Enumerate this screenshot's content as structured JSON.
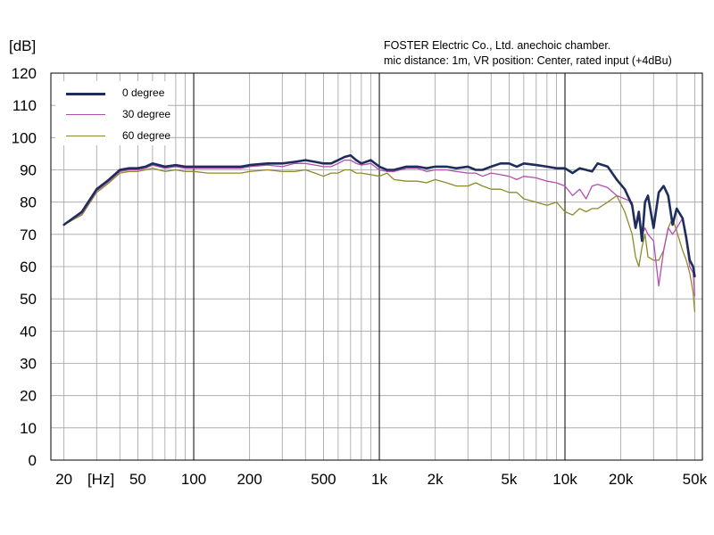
{
  "header": {
    "line1": "FOSTER Electric Co., Ltd.    anechoic chamber.",
    "line2": "mic distance: 1m, VR position: Center, rated input (+4dBu)"
  },
  "chart_data": {
    "type": "line",
    "ylabel": "[dB]",
    "xlabel": "[Hz]",
    "x_scale": "log",
    "xlim": [
      17,
      55000
    ],
    "ylim": [
      0,
      120
    ],
    "grid": true,
    "legend_position": "top-left",
    "y_ticks": [
      0,
      10,
      20,
      30,
      40,
      50,
      60,
      70,
      80,
      90,
      100,
      110,
      120
    ],
    "x_tick_labels": [
      {
        "value": 20,
        "label": "20"
      },
      {
        "value": 50,
        "label": "50"
      },
      {
        "value": 100,
        "label": "100"
      },
      {
        "value": 200,
        "label": "200"
      },
      {
        "value": 500,
        "label": "500"
      },
      {
        "value": 1000,
        "label": "1k"
      },
      {
        "value": 2000,
        "label": "2k"
      },
      {
        "value": 5000,
        "label": "5k"
      },
      {
        "value": 10000,
        "label": "10k"
      },
      {
        "value": 20000,
        "label": "20k"
      },
      {
        "value": 50000,
        "label": "50k"
      }
    ],
    "series": [
      {
        "name": "0 degree",
        "color": "#1f2d5c",
        "x": [
          20,
          25,
          30,
          35,
          40,
          45,
          50,
          55,
          60,
          70,
          80,
          90,
          100,
          120,
          150,
          180,
          200,
          250,
          300,
          350,
          400,
          450,
          500,
          550,
          600,
          650,
          700,
          750,
          800,
          900,
          1000,
          1100,
          1200,
          1400,
          1600,
          1800,
          2000,
          2300,
          2600,
          3000,
          3300,
          3600,
          4000,
          4500,
          5000,
          5500,
          6000,
          7000,
          8000,
          9000,
          10000,
          11000,
          12000,
          13000,
          14000,
          15000,
          17000,
          19000,
          21000,
          23000,
          24000,
          25000,
          26000,
          27000,
          28000,
          30000,
          32000,
          34000,
          36000,
          38000,
          40000,
          43000,
          45000,
          47000,
          49000,
          50000
        ],
        "y": [
          73,
          77,
          84,
          87,
          90,
          90.5,
          90.5,
          91,
          92,
          91,
          91.5,
          91,
          91,
          91,
          91,
          91,
          91.5,
          92,
          92,
          92.5,
          93,
          92.5,
          92,
          92,
          93,
          94,
          94.5,
          93,
          92,
          93,
          91,
          90,
          90,
          91,
          91,
          90.5,
          91,
          91,
          90.5,
          91,
          90,
          90,
          91,
          92,
          92,
          91,
          92,
          91.5,
          91,
          90.5,
          90.5,
          89,
          90.5,
          90,
          89.5,
          92,
          91,
          87,
          84,
          79,
          72,
          77,
          68,
          80,
          82,
          72,
          83,
          85,
          82,
          73,
          78,
          75,
          69,
          62,
          60,
          57
        ]
      },
      {
        "name": "30 degree",
        "color": "#b34fb0",
        "x": [
          20,
          25,
          30,
          35,
          40,
          45,
          50,
          55,
          60,
          70,
          80,
          90,
          100,
          120,
          150,
          180,
          200,
          250,
          300,
          350,
          400,
          450,
          500,
          550,
          600,
          650,
          700,
          750,
          800,
          900,
          1000,
          1100,
          1200,
          1400,
          1600,
          1800,
          2000,
          2300,
          2600,
          3000,
          3300,
          3600,
          4000,
          4500,
          5000,
          5500,
          6000,
          7000,
          8000,
          9000,
          10000,
          11000,
          12000,
          13000,
          14000,
          15000,
          17000,
          19000,
          21000,
          23000,
          24000,
          25000,
          26000,
          27000,
          28000,
          30000,
          32000,
          34000,
          36000,
          38000,
          40000,
          43000,
          45000,
          47000,
          49000,
          50000
        ],
        "y": [
          73,
          76.5,
          83.5,
          86.5,
          89.5,
          90,
          90,
          90.5,
          91.5,
          90.5,
          91,
          90.5,
          90.5,
          90.5,
          90.5,
          90.5,
          91,
          91.5,
          91,
          92,
          92,
          91.5,
          91,
          91,
          92,
          93,
          93,
          92,
          91.5,
          92,
          90,
          89.5,
          89.5,
          90.5,
          90.5,
          89.5,
          90,
          90,
          89.5,
          89,
          89,
          88,
          89,
          88.5,
          88,
          87,
          88,
          87.5,
          86.5,
          86,
          85,
          82,
          84,
          81,
          85,
          85.5,
          84.5,
          82,
          81,
          80,
          72,
          75,
          70,
          72,
          70,
          68,
          54,
          65,
          72,
          70,
          72,
          75,
          68,
          60,
          58,
          51
        ]
      },
      {
        "name": "60 degree",
        "color": "#8c8a2a",
        "x": [
          20,
          25,
          30,
          35,
          40,
          45,
          50,
          55,
          60,
          70,
          80,
          90,
          100,
          120,
          150,
          180,
          200,
          250,
          300,
          350,
          400,
          450,
          500,
          550,
          600,
          650,
          700,
          750,
          800,
          900,
          1000,
          1100,
          1200,
          1400,
          1600,
          1800,
          2000,
          2300,
          2600,
          3000,
          3300,
          3600,
          4000,
          4500,
          5000,
          5500,
          6000,
          7000,
          8000,
          9000,
          10000,
          11000,
          12000,
          13000,
          14000,
          15000,
          17000,
          19000,
          21000,
          23000,
          24000,
          25000,
          26000,
          27000,
          28000,
          30000,
          32000,
          34000,
          36000,
          38000,
          40000,
          43000,
          45000,
          47000,
          49000,
          50000
        ],
        "y": [
          73,
          76,
          83,
          86,
          89,
          89.5,
          89.5,
          90,
          90.5,
          89.5,
          90,
          89.5,
          89.5,
          89,
          89,
          89,
          89.5,
          90,
          89.5,
          89.5,
          90,
          89,
          88,
          89,
          89,
          90,
          90,
          89,
          89,
          88.5,
          88,
          89,
          87,
          86.5,
          86.5,
          86,
          87,
          86,
          85,
          85,
          86,
          85,
          84,
          84,
          83,
          83,
          81,
          80,
          79,
          80,
          77,
          76,
          78,
          77,
          78,
          78,
          80,
          82,
          77,
          70,
          63,
          60,
          66,
          70,
          63,
          62,
          62,
          65,
          72,
          75,
          71,
          65,
          62,
          58,
          52,
          46
        ]
      }
    ]
  }
}
